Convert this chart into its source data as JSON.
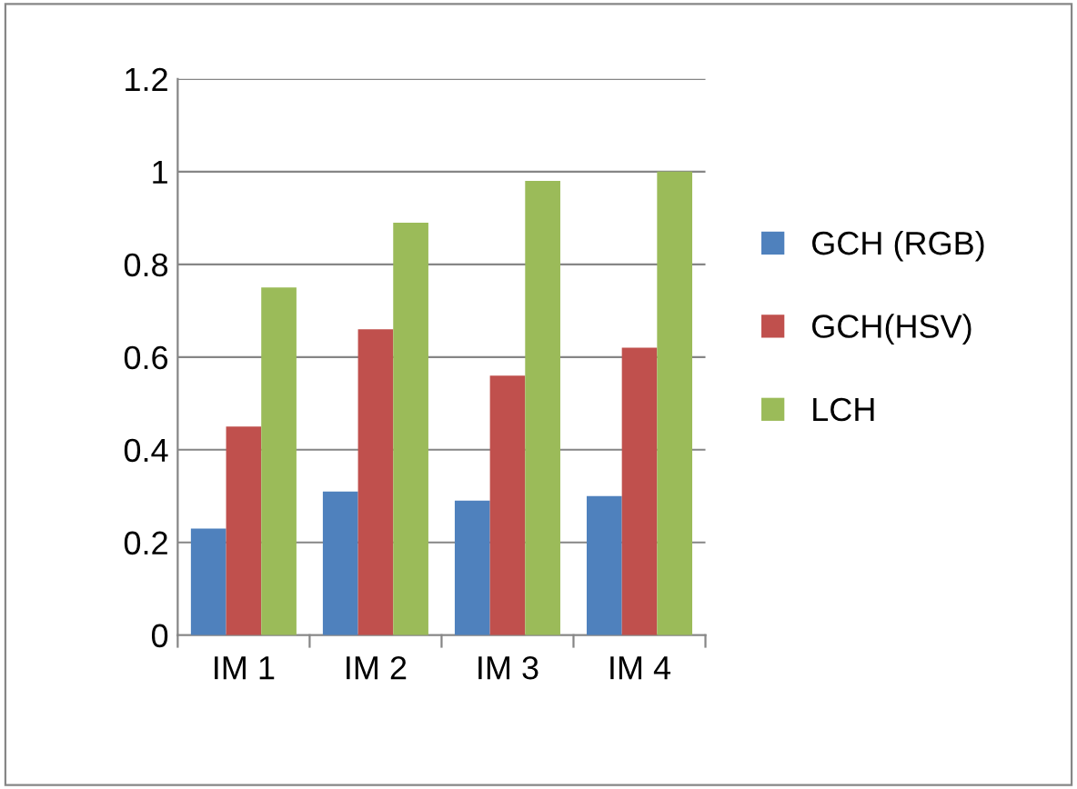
{
  "chart_data": {
    "type": "bar",
    "categories": [
      "IM 1",
      "IM 2",
      "IM 3",
      "IM 4"
    ],
    "series": [
      {
        "name": "GCH (RGB)",
        "color": "#4f81bd",
        "values": [
          0.23,
          0.31,
          0.29,
          0.3
        ]
      },
      {
        "name": "GCH(HSV)",
        "color": "#c0504d",
        "values": [
          0.45,
          0.66,
          0.56,
          0.62
        ]
      },
      {
        "name": "LCH",
        "color": "#9bbb59",
        "values": [
          0.75,
          0.89,
          0.98,
          1.0
        ]
      }
    ],
    "ylim": [
      0,
      1.2
    ],
    "yticks": [
      0,
      0.2,
      0.4,
      0.6,
      0.8,
      1,
      1.2
    ],
    "grid": "y",
    "legend": "right"
  }
}
